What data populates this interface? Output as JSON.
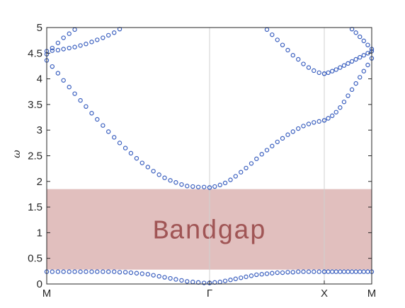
{
  "chart_data": {
    "type": "scatter",
    "title": "",
    "xlabel": "",
    "ylabel": "ω",
    "ylim": [
      0,
      5
    ],
    "y_ticks": [
      "0",
      "0.5",
      "1",
      "1.5",
      "2",
      "2.5",
      "3",
      "3.5",
      "4",
      "4.5",
      "5"
    ],
    "x_ticks": [
      "M",
      "Γ",
      "X",
      "M"
    ],
    "grid": "vertical lines at Γ and X",
    "marker": "open circle",
    "marker_color": "#3a5fbf",
    "bandgap": {
      "label": "Bandgap",
      "y_min": 0.28,
      "y_max": 1.85,
      "color": "#c98a88"
    },
    "branches": [
      {
        "segment": "M-Γ",
        "t": [
          0,
          0.034,
          0.069,
          0.103,
          0.138,
          0.172,
          0.207,
          0.241,
          0.276,
          0.31,
          0.345,
          0.379,
          0.414,
          0.448,
          0.483,
          0.517,
          0.552,
          0.586,
          0.621,
          0.655,
          0.69,
          0.724,
          0.759,
          0.793,
          0.828,
          0.862,
          0.897,
          0.931,
          0.966,
          1
        ],
        "omega": [
          0.24,
          0.24,
          0.24,
          0.24,
          0.24,
          0.24,
          0.24,
          0.24,
          0.24,
          0.24,
          0.24,
          0.24,
          0.24,
          0.23,
          0.23,
          0.22,
          0.21,
          0.2,
          0.19,
          0.17,
          0.15,
          0.13,
          0.11,
          0.09,
          0.07,
          0.05,
          0.04,
          0.03,
          0.02,
          0.02
        ]
      },
      {
        "segment": "Γ-X",
        "t": [
          0,
          0.045,
          0.091,
          0.136,
          0.182,
          0.227,
          0.273,
          0.318,
          0.364,
          0.409,
          0.455,
          0.5,
          0.545,
          0.591,
          0.636,
          0.682,
          0.727,
          0.773,
          0.818,
          0.864,
          0.909,
          0.955,
          1
        ],
        "omega": [
          0.02,
          0.03,
          0.04,
          0.06,
          0.08,
          0.1,
          0.12,
          0.14,
          0.16,
          0.18,
          0.19,
          0.2,
          0.21,
          0.22,
          0.22,
          0.23,
          0.23,
          0.24,
          0.24,
          0.24,
          0.24,
          0.24,
          0.24
        ]
      },
      {
        "segment": "X-M",
        "t": [
          0,
          0.083,
          0.167,
          0.25,
          0.333,
          0.417,
          0.5,
          0.583,
          0.667,
          0.75,
          0.833,
          0.917,
          1
        ],
        "omega": [
          0.24,
          0.24,
          0.24,
          0.24,
          0.24,
          0.24,
          0.24,
          0.24,
          0.24,
          0.24,
          0.24,
          0.24,
          0.24
        ]
      },
      {
        "segment": "M-Γ",
        "t": [
          0,
          0.034,
          0.069,
          0.103,
          0.138,
          0.172,
          0.207,
          0.241,
          0.276,
          0.31,
          0.345,
          0.379,
          0.414,
          0.448,
          0.483,
          0.517,
          0.552,
          0.586,
          0.621,
          0.655,
          0.69,
          0.724,
          0.759,
          0.793,
          0.828,
          0.862,
          0.897,
          0.931,
          0.966,
          1
        ],
        "omega": [
          4.36,
          4.24,
          4.11,
          3.97,
          3.84,
          3.71,
          3.58,
          3.46,
          3.33,
          3.21,
          3.09,
          2.97,
          2.86,
          2.75,
          2.65,
          2.55,
          2.45,
          2.36,
          2.28,
          2.2,
          2.13,
          2.07,
          2.02,
          1.98,
          1.94,
          1.91,
          1.9,
          1.89,
          1.89,
          1.88
        ]
      },
      {
        "segment": "Γ-X",
        "t": [
          0,
          0.045,
          0.091,
          0.136,
          0.182,
          0.227,
          0.273,
          0.318,
          0.364,
          0.409,
          0.455,
          0.5,
          0.545,
          0.591,
          0.636,
          0.682,
          0.727,
          0.773,
          0.818,
          0.864,
          0.909,
          0.955,
          1
        ],
        "omega": [
          1.88,
          1.9,
          1.93,
          1.97,
          2.03,
          2.1,
          2.18,
          2.26,
          2.35,
          2.44,
          2.53,
          2.61,
          2.69,
          2.77,
          2.84,
          2.91,
          2.97,
          3.03,
          3.08,
          3.12,
          3.15,
          3.17,
          3.19
        ]
      },
      {
        "segment": "X-M",
        "t": [
          0,
          0.083,
          0.167,
          0.25,
          0.333,
          0.417,
          0.5,
          0.583,
          0.667,
          0.75,
          0.833,
          0.917,
          1
        ],
        "omega": [
          3.19,
          3.23,
          3.28,
          3.35,
          3.44,
          3.55,
          3.67,
          3.79,
          3.91,
          4.03,
          4.15,
          4.27,
          4.4
        ]
      },
      {
        "segment": "M-Γ",
        "t": [
          0,
          0.034,
          0.069,
          0.103,
          0.138,
          0.172,
          0.207,
          0.241,
          0.276,
          0.31,
          0.345,
          0.379,
          0.414,
          0.448
        ],
        "omega": [
          4.54,
          4.55,
          4.56,
          4.58,
          4.6,
          4.62,
          4.65,
          4.68,
          4.72,
          4.76,
          4.8,
          4.85,
          4.9,
          4.97
        ]
      },
      {
        "segment": "M-Γ",
        "t": [
          0,
          0.034,
          0.069,
          0.103,
          0.138,
          0.172
        ],
        "omega": [
          4.48,
          4.6,
          4.7,
          4.8,
          4.88,
          4.96
        ]
      },
      {
        "segment": "Γ-X",
        "t": [
          0.5,
          0.545,
          0.591,
          0.636,
          0.682,
          0.727,
          0.773,
          0.818,
          0.864,
          0.909,
          0.955,
          1
        ],
        "omega": [
          4.96,
          4.86,
          4.76,
          4.66,
          4.56,
          4.46,
          4.38,
          4.29,
          4.22,
          4.16,
          4.12,
          4.1
        ]
      },
      {
        "segment": "X-M",
        "t": [
          0,
          0.083,
          0.167,
          0.25,
          0.333,
          0.417,
          0.5,
          0.583,
          0.667,
          0.75,
          0.833,
          0.917,
          1
        ],
        "omega": [
          4.1,
          4.12,
          4.15,
          4.18,
          4.22,
          4.26,
          4.3,
          4.34,
          4.38,
          4.42,
          4.46,
          4.5,
          4.54
        ]
      },
      {
        "segment": "X-M",
        "t": [
          0.583,
          0.667,
          0.75,
          0.833,
          0.917,
          1
        ],
        "omega": [
          4.97,
          4.9,
          4.82,
          4.74,
          4.66,
          4.58
        ]
      }
    ]
  }
}
